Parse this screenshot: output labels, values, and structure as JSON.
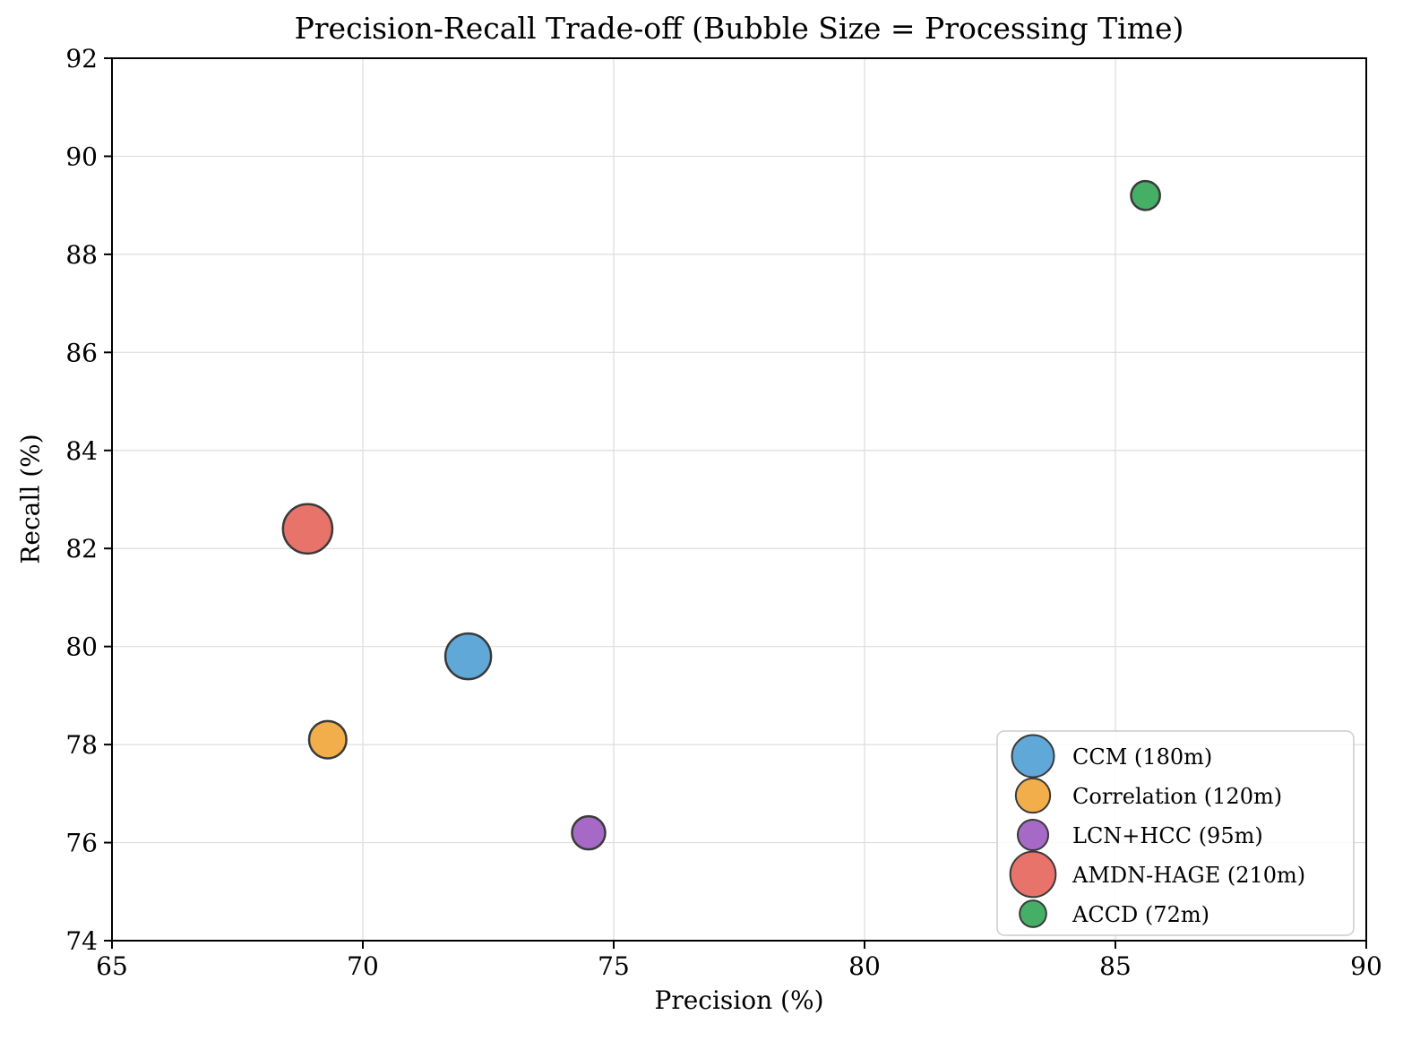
{
  "chart_data": {
    "type": "scatter",
    "title": "Precision-Recall Trade-off (Bubble Size = Processing Time)",
    "xlabel": "Precision (%)",
    "ylabel": "Recall (%)",
    "xlim": [
      65,
      90
    ],
    "ylim": [
      74,
      92
    ],
    "xticks": [
      65,
      70,
      75,
      80,
      85,
      90
    ],
    "yticks": [
      74,
      76,
      78,
      80,
      82,
      84,
      86,
      88,
      90,
      92
    ],
    "grid": true,
    "grid_color": "#dddddd",
    "legend_position": "lower right",
    "bubble_size_meaning": "processing time (minutes)",
    "bubble_scale": 1.9,
    "legend_bubble_scale": 1.75,
    "edge_color": "#3a3a3a",
    "series": [
      {
        "name": "CCM",
        "legend_label": "CCM (180m)",
        "precision": 72.1,
        "recall": 79.8,
        "time_min": 180,
        "color": "#5fa8d8"
      },
      {
        "name": "Correlation",
        "legend_label": "Correlation (120m)",
        "precision": 69.3,
        "recall": 78.1,
        "time_min": 120,
        "color": "#f1ae4b"
      },
      {
        "name": "LCN+HCC",
        "legend_label": "LCN+HCC (95m)",
        "precision": 74.5,
        "recall": 76.2,
        "time_min": 95,
        "color": "#a669c5"
      },
      {
        "name": "AMDN-HAGE",
        "legend_label": "AMDN-HAGE (210m)",
        "precision": 68.9,
        "recall": 82.4,
        "time_min": 210,
        "color": "#e8736a"
      },
      {
        "name": "ACCD",
        "legend_label": "ACCD (72m)",
        "precision": 85.6,
        "recall": 89.2,
        "time_min": 72,
        "color": "#45b065"
      }
    ]
  }
}
